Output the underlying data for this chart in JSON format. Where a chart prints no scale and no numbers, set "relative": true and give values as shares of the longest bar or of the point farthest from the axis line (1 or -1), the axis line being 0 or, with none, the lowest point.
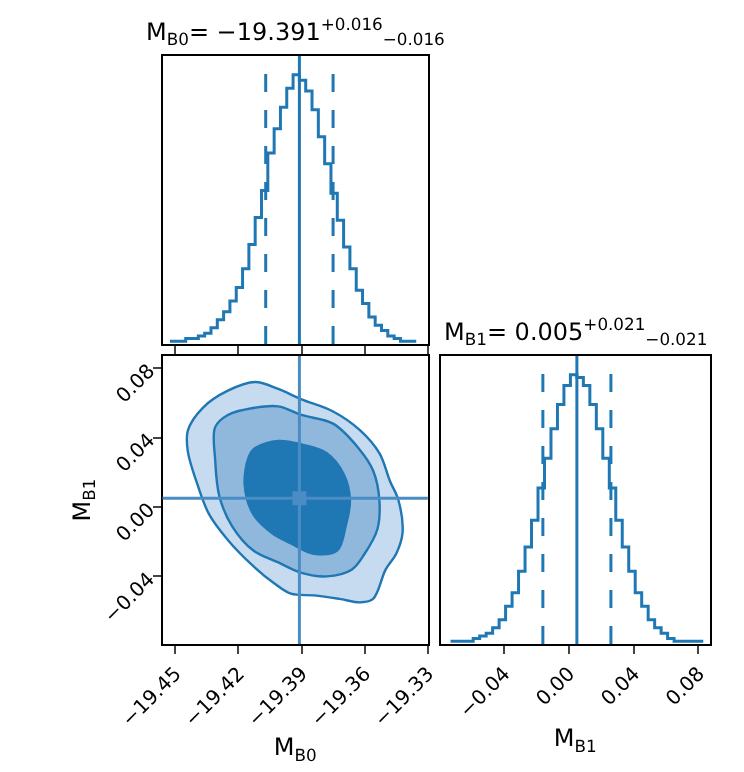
{
  "chart_data": [
    {
      "type": "step",
      "title": "M$_{B0}$= −19.391$^{+0.016}$$_{−0.016}$",
      "relative": true,
      "color": "#1f77b4",
      "line_style": "solid",
      "x": [
        -19.4525,
        -19.4495,
        -19.4465,
        -19.4435,
        -19.4405,
        -19.4375,
        -19.4345,
        -19.4315,
        -19.4285,
        -19.4255,
        -19.4225,
        -19.4195,
        -19.4165,
        -19.4135,
        -19.4105,
        -19.4075,
        -19.4045,
        -19.4015,
        -19.3985,
        -19.3955,
        -19.3925,
        -19.3895,
        -19.3865,
        -19.3835,
        -19.3805,
        -19.3775,
        -19.3745,
        -19.3715,
        -19.3685,
        -19.3655,
        -19.3625,
        -19.3595,
        -19.3565,
        -19.3535,
        -19.3505,
        -19.3475,
        -19.3445,
        -19.3415,
        -19.3385,
        -19.3355
      ],
      "values": [
        0.01,
        0.01,
        0.01,
        0.02,
        0.02,
        0.03,
        0.04,
        0.06,
        0.09,
        0.12,
        0.16,
        0.21,
        0.28,
        0.37,
        0.47,
        0.57,
        0.71,
        0.8,
        0.88,
        0.95,
        1.0,
        0.98,
        0.94,
        0.87,
        0.77,
        0.67,
        0.56,
        0.46,
        0.36,
        0.28,
        0.2,
        0.15,
        0.1,
        0.07,
        0.05,
        0.03,
        0.02,
        0.01,
        0.01,
        0.01
      ],
      "xlim": [
        -19.456,
        -19.33
      ],
      "xticks": [
        {
          "value": -19.45,
          "label": null
        },
        {
          "value": -19.42,
          "label": null
        },
        {
          "value": -19.39,
          "label": null
        },
        {
          "value": -19.36,
          "label": null
        },
        {
          "value": -19.33,
          "label": null
        }
      ],
      "tick_labels": false,
      "ref_lines": [
        {
          "axis": "x",
          "value": -19.407,
          "line_style": "dashed"
        },
        {
          "axis": "x",
          "value": -19.391,
          "line_style": "solid"
        },
        {
          "axis": "x",
          "value": -19.375,
          "line_style": "dashed"
        }
      ]
    },
    {
      "type": "area",
      "xlabel": "M$_{B0}$",
      "ylabel": "M$_{B1}$",
      "series": [
        {
          "color": "#c6dbef",
          "x": [
            -19.444,
            -19.437,
            -19.425,
            -19.412,
            -19.401,
            -19.39,
            -19.375,
            -19.362,
            -19.353,
            -19.348,
            -19.344,
            -19.342,
            -19.345,
            -19.35,
            -19.356,
            -19.362,
            -19.372,
            -19.384,
            -19.395,
            -19.403,
            -19.413,
            -19.425,
            -19.434,
            -19.44,
            -19.444
          ],
          "values": [
            0.044,
            0.057,
            0.067,
            0.072,
            0.068,
            0.062,
            0.055,
            0.044,
            0.031,
            0.015,
            0.004,
            -0.015,
            -0.027,
            -0.036,
            -0.053,
            -0.055,
            -0.053,
            -0.051,
            -0.05,
            -0.044,
            -0.034,
            -0.019,
            -0.004,
            0.015,
            0.032
          ]
        },
        {
          "color": "#8fb8dc",
          "x": [
            -19.431,
            -19.425,
            -19.413,
            -19.401,
            -19.39,
            -19.375,
            -19.363,
            -19.356,
            -19.353,
            -19.354,
            -19.36,
            -19.366,
            -19.378,
            -19.39,
            -19.401,
            -19.413,
            -19.423,
            -19.429,
            -19.431
          ],
          "values": [
            0.046,
            0.053,
            0.057,
            0.058,
            0.053,
            0.048,
            0.034,
            0.021,
            0.004,
            -0.013,
            -0.027,
            -0.036,
            -0.04,
            -0.038,
            -0.032,
            -0.025,
            -0.011,
            0.006,
            0.027
          ]
        },
        {
          "color": "#1f77b4",
          "x": [
            -19.415,
            -19.412,
            -19.401,
            -19.39,
            -19.378,
            -19.37,
            -19.367,
            -19.369,
            -19.373,
            -19.384,
            -19.395,
            -19.404,
            -19.413,
            -19.417
          ],
          "values": [
            0.029,
            0.034,
            0.038,
            0.036,
            0.031,
            0.019,
            0.004,
            -0.011,
            -0.025,
            -0.027,
            -0.021,
            -0.015,
            -0.004,
            0.013
          ]
        },
        {
          "type": "scatter",
          "marker": "square",
          "color": "#4a8cc4",
          "x": [
            -19.391
          ],
          "values": [
            0.005
          ]
        }
      ],
      "xlim": [
        -19.456,
        -19.33
      ],
      "ylim": [
        -0.079,
        0.087
      ],
      "xticks": [
        {
          "value": -19.45,
          "label": "−19.45"
        },
        {
          "value": -19.42,
          "label": "−19.42"
        },
        {
          "value": -19.39,
          "label": "−19.39"
        },
        {
          "value": -19.36,
          "label": "−19.36"
        },
        {
          "value": -19.33,
          "label": "−19.33"
        }
      ],
      "yticks": [
        {
          "value": -0.04,
          "label": "−0.04"
        },
        {
          "value": 0.0,
          "label": "0.00"
        },
        {
          "value": 0.04,
          "label": "0.04"
        },
        {
          "value": 0.08,
          "label": "0.08"
        }
      ],
      "ref_lines": [
        {
          "axis": "x",
          "value": -19.391,
          "color": "#4a8cc4",
          "line_style": "solid"
        },
        {
          "axis": "y",
          "value": 0.005,
          "color": "#4a8cc4",
          "line_style": "solid"
        }
      ]
    },
    {
      "type": "step",
      "title": "M$_{B1}$= 0.005$^{+0.021}$$_{−0.021}$",
      "xlabel": "M$_{B1}$",
      "relative": true,
      "color": "#1f77b4",
      "line_style": "solid",
      "x": [
        -0.073,
        -0.069,
        -0.065,
        -0.061,
        -0.057,
        -0.053,
        -0.049,
        -0.045,
        -0.041,
        -0.037,
        -0.033,
        -0.029,
        -0.025,
        -0.021,
        -0.017,
        -0.013,
        -0.009,
        -0.005,
        -0.001,
        0.003,
        0.007,
        0.011,
        0.015,
        0.019,
        0.023,
        0.027,
        0.031,
        0.035,
        0.039,
        0.043,
        0.047,
        0.051,
        0.055,
        0.059,
        0.063,
        0.067,
        0.071,
        0.075,
        0.079,
        0.083
      ],
      "values": [
        0.01,
        0.01,
        0.01,
        0.01,
        0.02,
        0.03,
        0.04,
        0.06,
        0.09,
        0.14,
        0.19,
        0.27,
        0.36,
        0.46,
        0.58,
        0.69,
        0.8,
        0.89,
        0.96,
        1.0,
        0.99,
        0.96,
        0.89,
        0.8,
        0.69,
        0.58,
        0.46,
        0.36,
        0.27,
        0.19,
        0.14,
        0.09,
        0.06,
        0.04,
        0.02,
        0.01,
        0.01,
        0.01,
        0.01,
        0.01
      ],
      "xlim": [
        -0.079,
        0.087
      ],
      "xticks": [
        {
          "value": -0.04,
          "label": "−0.04"
        },
        {
          "value": 0.0,
          "label": "0.00"
        },
        {
          "value": 0.04,
          "label": "0.04"
        },
        {
          "value": 0.08,
          "label": "0.08"
        }
      ],
      "tick_labels": "x",
      "ref_lines": [
        {
          "axis": "x",
          "value": -0.016,
          "line_style": "dashed"
        },
        {
          "axis": "x",
          "value": 0.005,
          "line_style": "solid"
        },
        {
          "axis": "x",
          "value": 0.026,
          "line_style": "dashed"
        }
      ]
    }
  ]
}
